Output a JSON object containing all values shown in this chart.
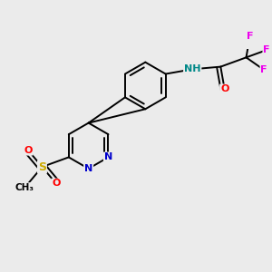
{
  "background_color": "#ebebeb",
  "atom_colors": {
    "N": "#0000cc",
    "O": "#ff0000",
    "F": "#ee00ee",
    "S": "#ccaa00",
    "H": "#008888",
    "C": "#000000"
  },
  "bond_color": "#000000",
  "bond_lw": 1.4,
  "xlim": [
    -2.3,
    2.5
  ],
  "ylim": [
    -1.6,
    1.6
  ],
  "figsize": [
    3.0,
    3.0
  ],
  "dpi": 100
}
